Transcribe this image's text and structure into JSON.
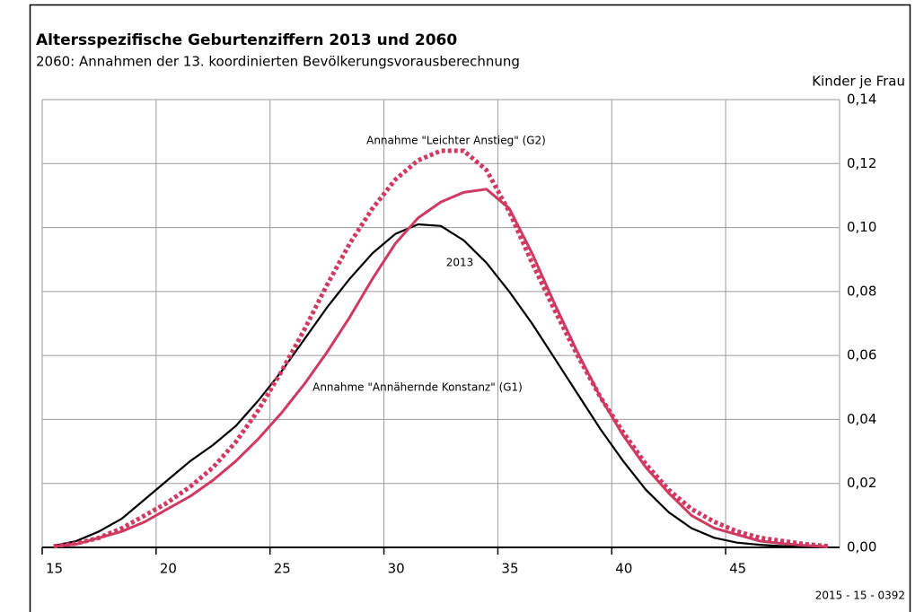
{
  "chart_data": {
    "type": "line",
    "title": "Altersspezifische Geburtenziffern 2013 und 2060",
    "subtitle": "2060: Annahmen der 13. koordinierten Bevölkerungsvorausberechnung",
    "y_label": "Kinder je Frau",
    "source": "2015 - 15 - 0392",
    "x": [
      15.5,
      16.5,
      17.5,
      18.5,
      19.5,
      20.5,
      21.5,
      22.5,
      23.5,
      24.5,
      25.5,
      26.5,
      27.5,
      28.5,
      29.5,
      30.5,
      31.5,
      32.5,
      33.5,
      34.5,
      35.5,
      36.5,
      37.5,
      38.5,
      39.5,
      40.5,
      41.5,
      42.5,
      43.5,
      44.5,
      45.5,
      46.5,
      47.5,
      48.5,
      49.5
    ],
    "series": [
      {
        "name": "2013",
        "color": "#000000",
        "style": "solid",
        "values": [
          0.0005,
          0.002,
          0.005,
          0.009,
          0.015,
          0.021,
          0.027,
          0.032,
          0.038,
          0.046,
          0.055,
          0.065,
          0.075,
          0.084,
          0.092,
          0.098,
          0.101,
          0.1005,
          0.096,
          0.089,
          0.08,
          0.07,
          0.059,
          0.048,
          0.037,
          0.027,
          0.018,
          0.011,
          0.006,
          0.003,
          0.0015,
          0.0008,
          0.0004,
          0.0002,
          0.0001
        ]
      },
      {
        "name": "Annahme \"Annähernde Konstanz\" (G1)",
        "color": "#d03a62",
        "style": "solid",
        "values": [
          0.0003,
          0.001,
          0.003,
          0.005,
          0.008,
          0.012,
          0.016,
          0.021,
          0.027,
          0.034,
          0.042,
          0.051,
          0.061,
          0.072,
          0.084,
          0.095,
          0.103,
          0.108,
          0.111,
          0.112,
          0.106,
          0.092,
          0.076,
          0.061,
          0.047,
          0.035,
          0.025,
          0.017,
          0.01,
          0.006,
          0.004,
          0.002,
          0.0012,
          0.0006,
          0.0002
        ]
      },
      {
        "name": "Annahme \"Leichter Anstieg\" (G2)",
        "color": "#d03a62",
        "style": "dotted",
        "values": [
          0.0003,
          0.0012,
          0.003,
          0.006,
          0.01,
          0.014,
          0.019,
          0.025,
          0.033,
          0.043,
          0.055,
          0.068,
          0.082,
          0.095,
          0.106,
          0.115,
          0.121,
          0.124,
          0.124,
          0.118,
          0.105,
          0.089,
          0.074,
          0.06,
          0.047,
          0.036,
          0.026,
          0.018,
          0.012,
          0.008,
          0.005,
          0.003,
          0.002,
          0.001,
          0.0004
        ]
      }
    ],
    "xlim": [
      15,
      50
    ],
    "xticks": [
      15,
      20,
      25,
      30,
      35,
      40,
      45
    ],
    "ylim": [
      0,
      0.14
    ],
    "yticks": [
      {
        "value": 0,
        "label": "0,00"
      },
      {
        "value": 0.02,
        "label": "0,02"
      },
      {
        "value": 0.04,
        "label": "0,04"
      },
      {
        "value": 0.06,
        "label": "0,06"
      },
      {
        "value": 0.08,
        "label": "0,08"
      },
      {
        "value": 0.1,
        "label": "0,10"
      },
      {
        "value": 0.12,
        "label": "0,12"
      },
      {
        "value": 0.14,
        "label": "0,14"
      }
    ],
    "grid": true
  }
}
